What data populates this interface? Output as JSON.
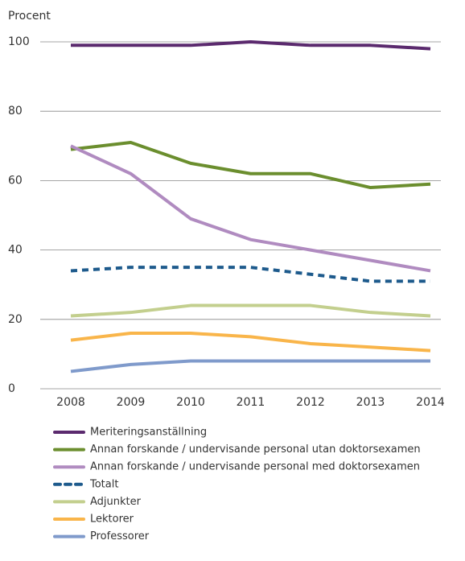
{
  "chart_data": {
    "type": "line",
    "y_axis_label": "Procent",
    "x": [
      2008,
      2009,
      2010,
      2011,
      2012,
      2013,
      2014
    ],
    "xlim": [
      2008,
      2014
    ],
    "xticks": [
      2008,
      2009,
      2010,
      2011,
      2012,
      2013,
      2014
    ],
    "ylim": [
      0,
      100
    ],
    "yticks": [
      0,
      20,
      40,
      60,
      80,
      100
    ],
    "grid": true,
    "series": [
      {
        "name": "Meriteringsanställning",
        "color": "#5b2a6e",
        "values": [
          99,
          99,
          99,
          100,
          99,
          99,
          98
        ]
      },
      {
        "name": "Annan forskande / undervisande personal utan doktorsexamen",
        "color": "#6b8e2e",
        "values": [
          69,
          71,
          65,
          62,
          62,
          58,
          59
        ]
      },
      {
        "name": "Annan forskande / undervisande personal med doktorsexamen",
        "color": "#b08bc0",
        "values": [
          70,
          62,
          49,
          43,
          40,
          37,
          34
        ]
      },
      {
        "name": "Totalt",
        "color": "#1d5a8c",
        "dashed": true,
        "values": [
          34,
          35,
          35,
          35,
          33,
          31,
          31
        ]
      },
      {
        "name": "Adjunkter",
        "color": "#c3cf8e",
        "values": [
          21,
          22,
          24,
          24,
          24,
          22,
          21
        ]
      },
      {
        "name": "Lektorer",
        "color": "#f9b54a",
        "values": [
          14,
          16,
          16,
          15,
          13,
          12,
          11
        ]
      },
      {
        "name": "Professorer",
        "color": "#7f9acb",
        "values": [
          5,
          7,
          8,
          8,
          8,
          8,
          8
        ]
      }
    ]
  }
}
